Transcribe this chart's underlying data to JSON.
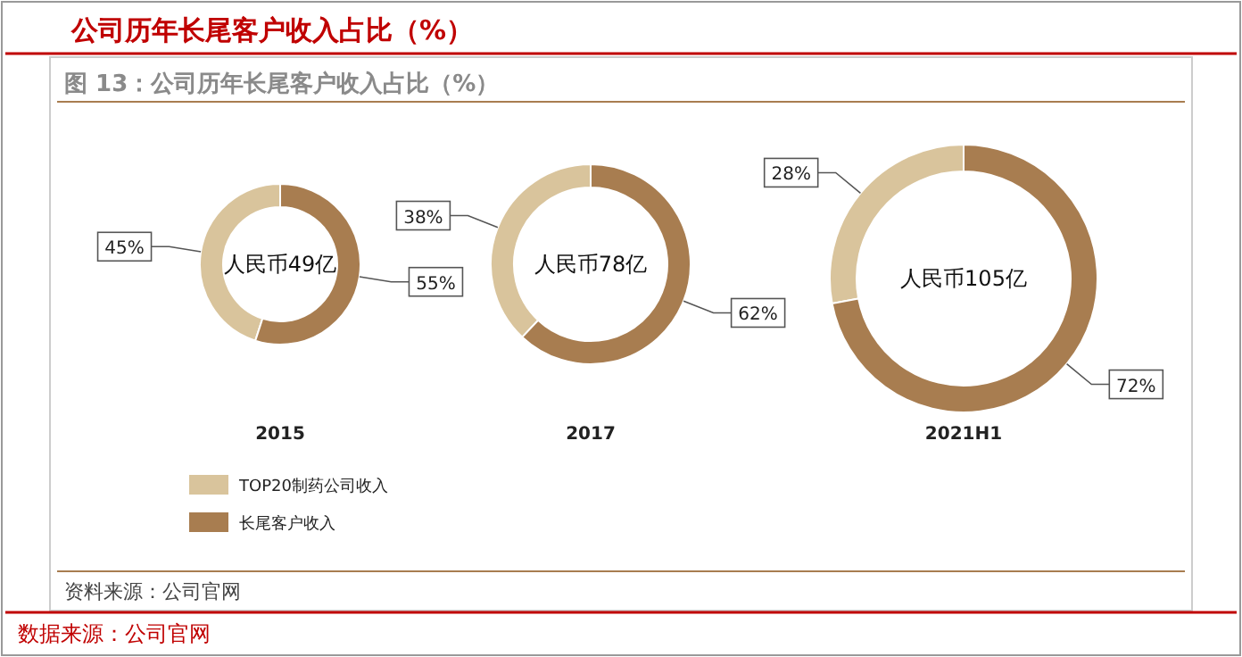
{
  "chart_data": [
    {
      "type": "other",
      "title": "公司历年长尾客户收入占比（%）",
      "subtitle": "图 13：公司历年长尾客户收入占比（%）",
      "annotations": [
        "资料来源：公司官网",
        "数据来源：公司官网"
      ]
    },
    {
      "type": "donut",
      "xlabel": "2015",
      "categories": [
        "TOP20制药公司收入",
        "长尾客户收入"
      ],
      "values": [
        45,
        55
      ],
      "value_labels": [
        "45%",
        "55%"
      ],
      "colors": [
        "#d9c49c",
        "#a87d50"
      ],
      "legend": "bottom",
      "annotations": [
        "人民币49亿"
      ]
    },
    {
      "type": "donut",
      "xlabel": "2017",
      "categories": [
        null,
        null
      ],
      "values": [
        38,
        62
      ],
      "value_labels": [
        "38%",
        "62%"
      ],
      "colors": [
        "#d9c49c",
        "#a87d50"
      ],
      "annotations": [
        "人民币78亿"
      ]
    },
    {
      "type": "donut",
      "xlabel": "2021H1",
      "categories": [
        null,
        null
      ],
      "values": [
        28,
        72
      ],
      "value_labels": [
        "28%",
        "72%"
      ],
      "colors": [
        "#d9c49c",
        "#a87d50"
      ],
      "annotations": [
        "人民币105亿"
      ]
    }
  ]
}
